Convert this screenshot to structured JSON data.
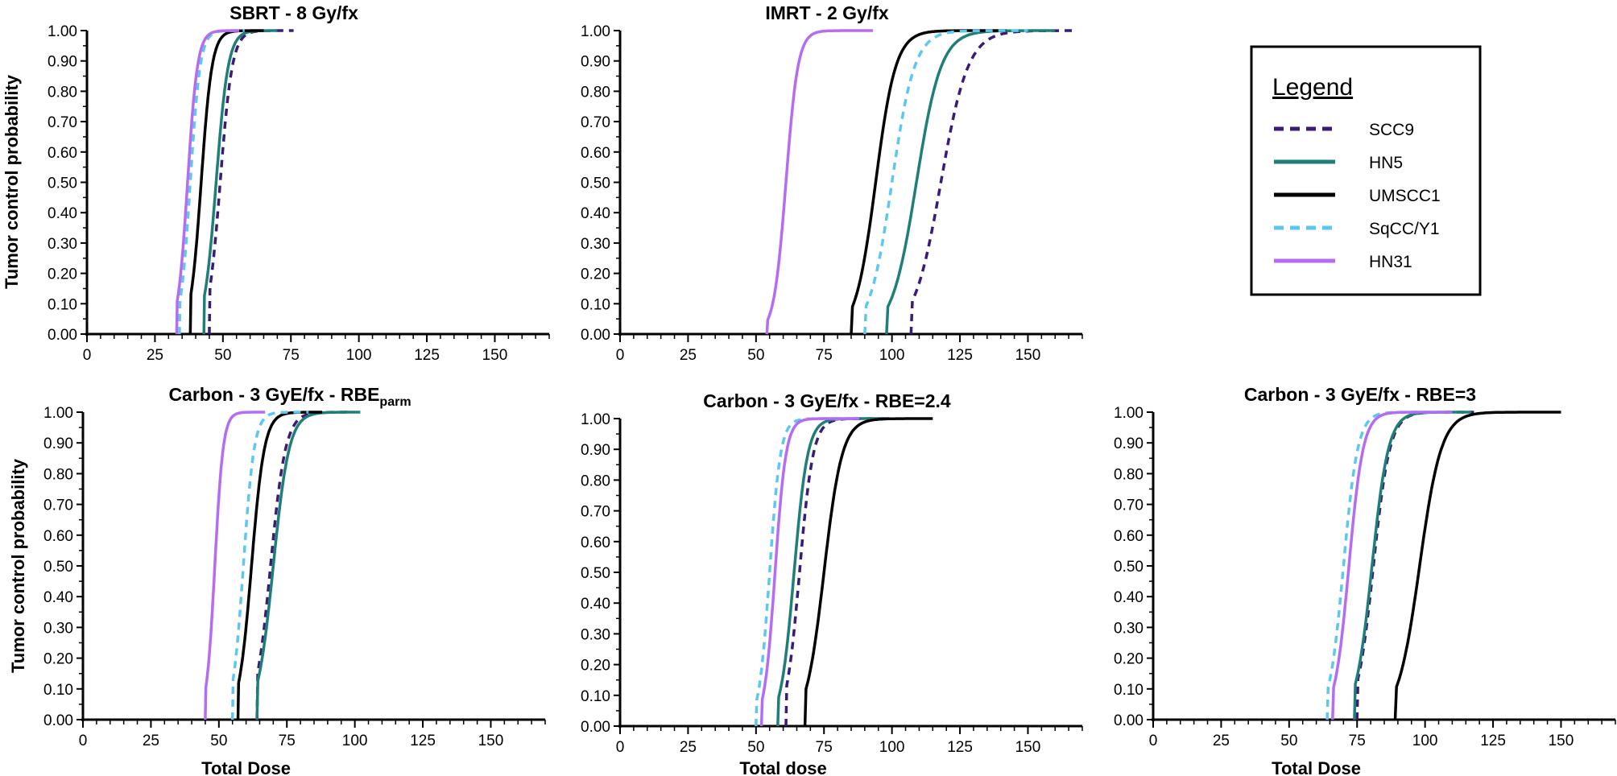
{
  "colors": {
    "SCC9": "#3b1a78",
    "HN5": "#1f7f78",
    "UMSCC1": "#000000",
    "SqCC/Y1": "#5cc8ef",
    "HN31": "#b56cf2"
  },
  "legend": {
    "title": "Legend",
    "items": [
      {
        "label": "SCC9",
        "style": "dashed"
      },
      {
        "label": "HN5",
        "style": "solid"
      },
      {
        "label": "UMSCC1",
        "style": "solid"
      },
      {
        "label": "SqCC/Y1",
        "style": "dashed"
      },
      {
        "label": "HN31",
        "style": "solid"
      }
    ]
  },
  "chart_data": [
    {
      "type": "line",
      "title": "SBRT - 8 Gy/fx",
      "title_sub": "",
      "xlabel": "",
      "ylabel": "Tumor control probability",
      "xlim": [
        0,
        170
      ],
      "ylim": [
        0,
        1
      ],
      "xticks": [
        "0",
        "25",
        "50",
        "75",
        "100",
        "125",
        "150"
      ],
      "yticks": [
        "0.00",
        "0.10",
        "0.20",
        "0.30",
        "0.40",
        "0.50",
        "0.60",
        "0.70",
        "0.80",
        "0.90",
        "1.00"
      ],
      "series": [
        {
          "name": "SCC9",
          "d50": 49,
          "k": 0.45,
          "x_start": 45,
          "x_end": 76
        },
        {
          "name": "HN5",
          "d50": 47.5,
          "k": 0.45,
          "x_start": 43,
          "x_end": 70
        },
        {
          "name": "UMSCC1",
          "d50": 42,
          "k": 0.5,
          "x_start": 38,
          "x_end": 65
        },
        {
          "name": "SqCC/Y1",
          "d50": 38,
          "k": 0.55,
          "x_start": 34,
          "x_end": 58
        },
        {
          "name": "HN31",
          "d50": 37,
          "k": 0.55,
          "x_start": 33,
          "x_end": 56
        }
      ]
    },
    {
      "type": "line",
      "title": "IMRT - 2 Gy/fx",
      "title_sub": "",
      "xlabel": "",
      "ylabel": "",
      "xlim": [
        0,
        170
      ],
      "ylim": [
        0,
        1
      ],
      "xticks": [
        "0",
        "25",
        "50",
        "75",
        "100",
        "125",
        "150"
      ],
      "yticks": [
        "0.00",
        "0.10",
        "0.20",
        "0.30",
        "0.40",
        "0.50",
        "0.60",
        "0.70",
        "0.80",
        "0.90",
        "1.00"
      ],
      "series": [
        {
          "name": "SCC9",
          "d50": 118,
          "k": 0.2,
          "x_start": 107,
          "x_end": 168
        },
        {
          "name": "HN5",
          "d50": 109,
          "k": 0.22,
          "x_start": 98,
          "x_end": 160
        },
        {
          "name": "UMSCC1",
          "d50": 94,
          "k": 0.27,
          "x_start": 85,
          "x_end": 142
        },
        {
          "name": "SqCC/Y1",
          "d50": 100,
          "k": 0.24,
          "x_start": 90,
          "x_end": 150
        },
        {
          "name": "HN31",
          "d50": 61,
          "k": 0.45,
          "x_start": 54,
          "x_end": 93
        }
      ]
    },
    {
      "type": "line",
      "title": "Carbon - 3 GyE/fx - RBE",
      "title_sub": "parm",
      "xlabel": "Total Dose",
      "ylabel": "Tumor control probability",
      "xlim": [
        0,
        170
      ],
      "ylim": [
        0,
        1
      ],
      "xticks": [
        "0",
        "25",
        "50",
        "75",
        "100",
        "125",
        "150"
      ],
      "yticks": [
        "0.00",
        "0.10",
        "0.20",
        "0.30",
        "0.40",
        "0.50",
        "0.60",
        "0.70",
        "0.80",
        "0.90",
        "1.00"
      ],
      "series": [
        {
          "name": "SCC9",
          "d50": 69,
          "k": 0.36,
          "x_start": 64,
          "x_end": 99
        },
        {
          "name": "HN5",
          "d50": 70,
          "k": 0.34,
          "x_start": 64,
          "x_end": 102
        },
        {
          "name": "UMSCC1",
          "d50": 62,
          "k": 0.42,
          "x_start": 57,
          "x_end": 88
        },
        {
          "name": "SqCC/Y1",
          "d50": 59,
          "k": 0.5,
          "x_start": 55,
          "x_end": 83
        },
        {
          "name": "HN31",
          "d50": 48.5,
          "k": 0.65,
          "x_start": 45,
          "x_end": 67
        }
      ]
    },
    {
      "type": "line",
      "title": "Carbon - 3 GyE/fx - RBE=2.4",
      "title_sub": "",
      "xlabel": "Total dose",
      "ylabel": "",
      "xlim": [
        0,
        170
      ],
      "ylim": [
        0,
        1
      ],
      "xticks": [
        "0",
        "25",
        "50",
        "75",
        "100",
        "125",
        "150"
      ],
      "yticks": [
        "0.00",
        "0.10",
        "0.20",
        "0.30",
        "0.40",
        "0.50",
        "0.60",
        "0.70",
        "0.80",
        "0.90",
        "1.00"
      ],
      "series": [
        {
          "name": "SCC9",
          "d50": 66,
          "k": 0.4,
          "x_start": 61,
          "x_end": 97
        },
        {
          "name": "HN5",
          "d50": 64,
          "k": 0.4,
          "x_start": 58,
          "x_end": 99
        },
        {
          "name": "UMSCC1",
          "d50": 75,
          "k": 0.3,
          "x_start": 68,
          "x_end": 115
        },
        {
          "name": "SqCC/Y1",
          "d50": 55,
          "k": 0.5,
          "x_start": 50,
          "x_end": 85
        },
        {
          "name": "HN31",
          "d50": 57,
          "k": 0.5,
          "x_start": 52,
          "x_end": 88
        }
      ]
    },
    {
      "type": "line",
      "title": "Carbon - 3 GyE/fx - RBE=3",
      "title_sub": "",
      "xlabel": "Total Dose",
      "ylabel": "",
      "xlim": [
        0,
        170
      ],
      "ylim": [
        0,
        1
      ],
      "xticks": [
        "0",
        "25",
        "50",
        "75",
        "100",
        "125",
        "150"
      ],
      "yticks": [
        "0.00",
        "0.10",
        "0.20",
        "0.30",
        "0.40",
        "0.50",
        "0.60",
        "0.70",
        "0.80",
        "0.90",
        "1.00"
      ],
      "series": [
        {
          "name": "SCC9",
          "d50": 81,
          "k": 0.33,
          "x_start": 75,
          "x_end": 118
        },
        {
          "name": "HN5",
          "d50": 80.5,
          "k": 0.33,
          "x_start": 74,
          "x_end": 117
        },
        {
          "name": "UMSCC1",
          "d50": 98,
          "k": 0.25,
          "x_start": 89,
          "x_end": 150
        },
        {
          "name": "SqCC/Y1",
          "d50": 70,
          "k": 0.38,
          "x_start": 64,
          "x_end": 106
        },
        {
          "name": "HN31",
          "d50": 72,
          "k": 0.38,
          "x_start": 66,
          "x_end": 110
        }
      ]
    }
  ]
}
